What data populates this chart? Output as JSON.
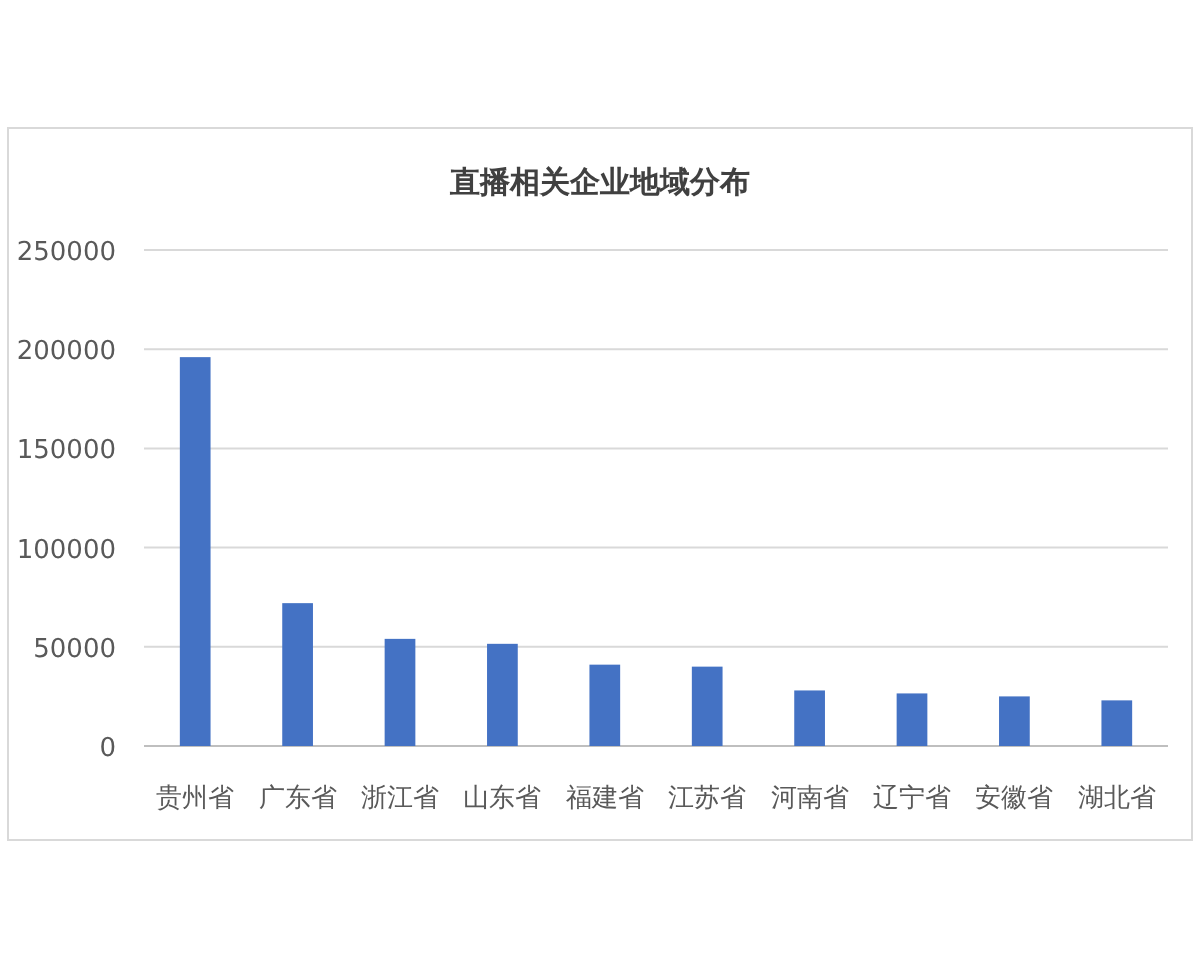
{
  "chart_data": {
    "type": "bar",
    "title": "直播相关企业地域分布",
    "categories": [
      "贵州省",
      "广东省",
      "浙江省",
      "山东省",
      "福建省",
      "江苏省",
      "河南省",
      "辽宁省",
      "安徽省",
      "湖北省"
    ],
    "values": [
      196000,
      72000,
      54000,
      51500,
      41000,
      40000,
      28000,
      26500,
      25000,
      23000
    ],
    "color": "#4472c4",
    "ylim": [
      0,
      250000
    ],
    "yticks": [
      0,
      50000,
      100000,
      150000,
      200000,
      250000
    ],
    "grid": "y"
  }
}
